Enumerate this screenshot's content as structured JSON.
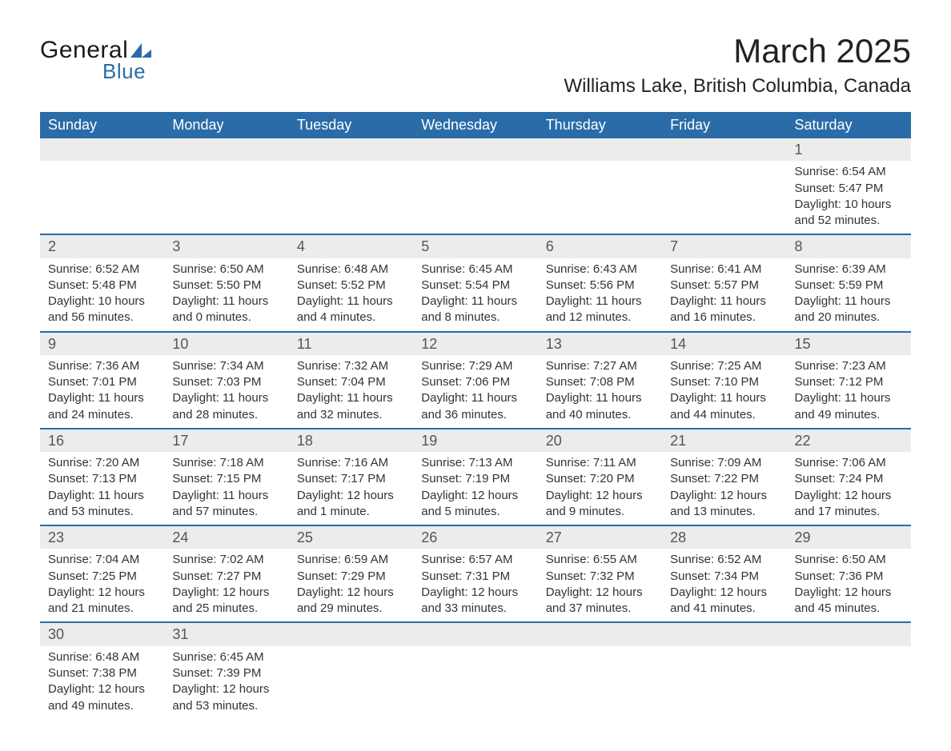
{
  "logo": {
    "general": "General",
    "blue": "Blue",
    "mark_color": "#2a6ca8"
  },
  "title": "March 2025",
  "location": "Williams Lake, British Columbia, Canada",
  "header_bg": "#2a6ca8",
  "header_text": "#ffffff",
  "daynum_bg": "#ececec",
  "row_border": "#2a6ca8",
  "weekdays": [
    "Sunday",
    "Monday",
    "Tuesday",
    "Wednesday",
    "Thursday",
    "Friday",
    "Saturday"
  ],
  "weeks": [
    [
      null,
      null,
      null,
      null,
      null,
      null,
      {
        "n": "1",
        "sr": "6:54 AM",
        "ss": "5:47 PM",
        "dl": "10 hours and 52 minutes."
      }
    ],
    [
      {
        "n": "2",
        "sr": "6:52 AM",
        "ss": "5:48 PM",
        "dl": "10 hours and 56 minutes."
      },
      {
        "n": "3",
        "sr": "6:50 AM",
        "ss": "5:50 PM",
        "dl": "11 hours and 0 minutes."
      },
      {
        "n": "4",
        "sr": "6:48 AM",
        "ss": "5:52 PM",
        "dl": "11 hours and 4 minutes."
      },
      {
        "n": "5",
        "sr": "6:45 AM",
        "ss": "5:54 PM",
        "dl": "11 hours and 8 minutes."
      },
      {
        "n": "6",
        "sr": "6:43 AM",
        "ss": "5:56 PM",
        "dl": "11 hours and 12 minutes."
      },
      {
        "n": "7",
        "sr": "6:41 AM",
        "ss": "5:57 PM",
        "dl": "11 hours and 16 minutes."
      },
      {
        "n": "8",
        "sr": "6:39 AM",
        "ss": "5:59 PM",
        "dl": "11 hours and 20 minutes."
      }
    ],
    [
      {
        "n": "9",
        "sr": "7:36 AM",
        "ss": "7:01 PM",
        "dl": "11 hours and 24 minutes."
      },
      {
        "n": "10",
        "sr": "7:34 AM",
        "ss": "7:03 PM",
        "dl": "11 hours and 28 minutes."
      },
      {
        "n": "11",
        "sr": "7:32 AM",
        "ss": "7:04 PM",
        "dl": "11 hours and 32 minutes."
      },
      {
        "n": "12",
        "sr": "7:29 AM",
        "ss": "7:06 PM",
        "dl": "11 hours and 36 minutes."
      },
      {
        "n": "13",
        "sr": "7:27 AM",
        "ss": "7:08 PM",
        "dl": "11 hours and 40 minutes."
      },
      {
        "n": "14",
        "sr": "7:25 AM",
        "ss": "7:10 PM",
        "dl": "11 hours and 44 minutes."
      },
      {
        "n": "15",
        "sr": "7:23 AM",
        "ss": "7:12 PM",
        "dl": "11 hours and 49 minutes."
      }
    ],
    [
      {
        "n": "16",
        "sr": "7:20 AM",
        "ss": "7:13 PM",
        "dl": "11 hours and 53 minutes."
      },
      {
        "n": "17",
        "sr": "7:18 AM",
        "ss": "7:15 PM",
        "dl": "11 hours and 57 minutes."
      },
      {
        "n": "18",
        "sr": "7:16 AM",
        "ss": "7:17 PM",
        "dl": "12 hours and 1 minute."
      },
      {
        "n": "19",
        "sr": "7:13 AM",
        "ss": "7:19 PM",
        "dl": "12 hours and 5 minutes."
      },
      {
        "n": "20",
        "sr": "7:11 AM",
        "ss": "7:20 PM",
        "dl": "12 hours and 9 minutes."
      },
      {
        "n": "21",
        "sr": "7:09 AM",
        "ss": "7:22 PM",
        "dl": "12 hours and 13 minutes."
      },
      {
        "n": "22",
        "sr": "7:06 AM",
        "ss": "7:24 PM",
        "dl": "12 hours and 17 minutes."
      }
    ],
    [
      {
        "n": "23",
        "sr": "7:04 AM",
        "ss": "7:25 PM",
        "dl": "12 hours and 21 minutes."
      },
      {
        "n": "24",
        "sr": "7:02 AM",
        "ss": "7:27 PM",
        "dl": "12 hours and 25 minutes."
      },
      {
        "n": "25",
        "sr": "6:59 AM",
        "ss": "7:29 PM",
        "dl": "12 hours and 29 minutes."
      },
      {
        "n": "26",
        "sr": "6:57 AM",
        "ss": "7:31 PM",
        "dl": "12 hours and 33 minutes."
      },
      {
        "n": "27",
        "sr": "6:55 AM",
        "ss": "7:32 PM",
        "dl": "12 hours and 37 minutes."
      },
      {
        "n": "28",
        "sr": "6:52 AM",
        "ss": "7:34 PM",
        "dl": "12 hours and 41 minutes."
      },
      {
        "n": "29",
        "sr": "6:50 AM",
        "ss": "7:36 PM",
        "dl": "12 hours and 45 minutes."
      }
    ],
    [
      {
        "n": "30",
        "sr": "6:48 AM",
        "ss": "7:38 PM",
        "dl": "12 hours and 49 minutes."
      },
      {
        "n": "31",
        "sr": "6:45 AM",
        "ss": "7:39 PM",
        "dl": "12 hours and 53 minutes."
      },
      null,
      null,
      null,
      null,
      null
    ]
  ],
  "labels": {
    "sunrise": "Sunrise: ",
    "sunset": "Sunset: ",
    "daylight": "Daylight: "
  }
}
